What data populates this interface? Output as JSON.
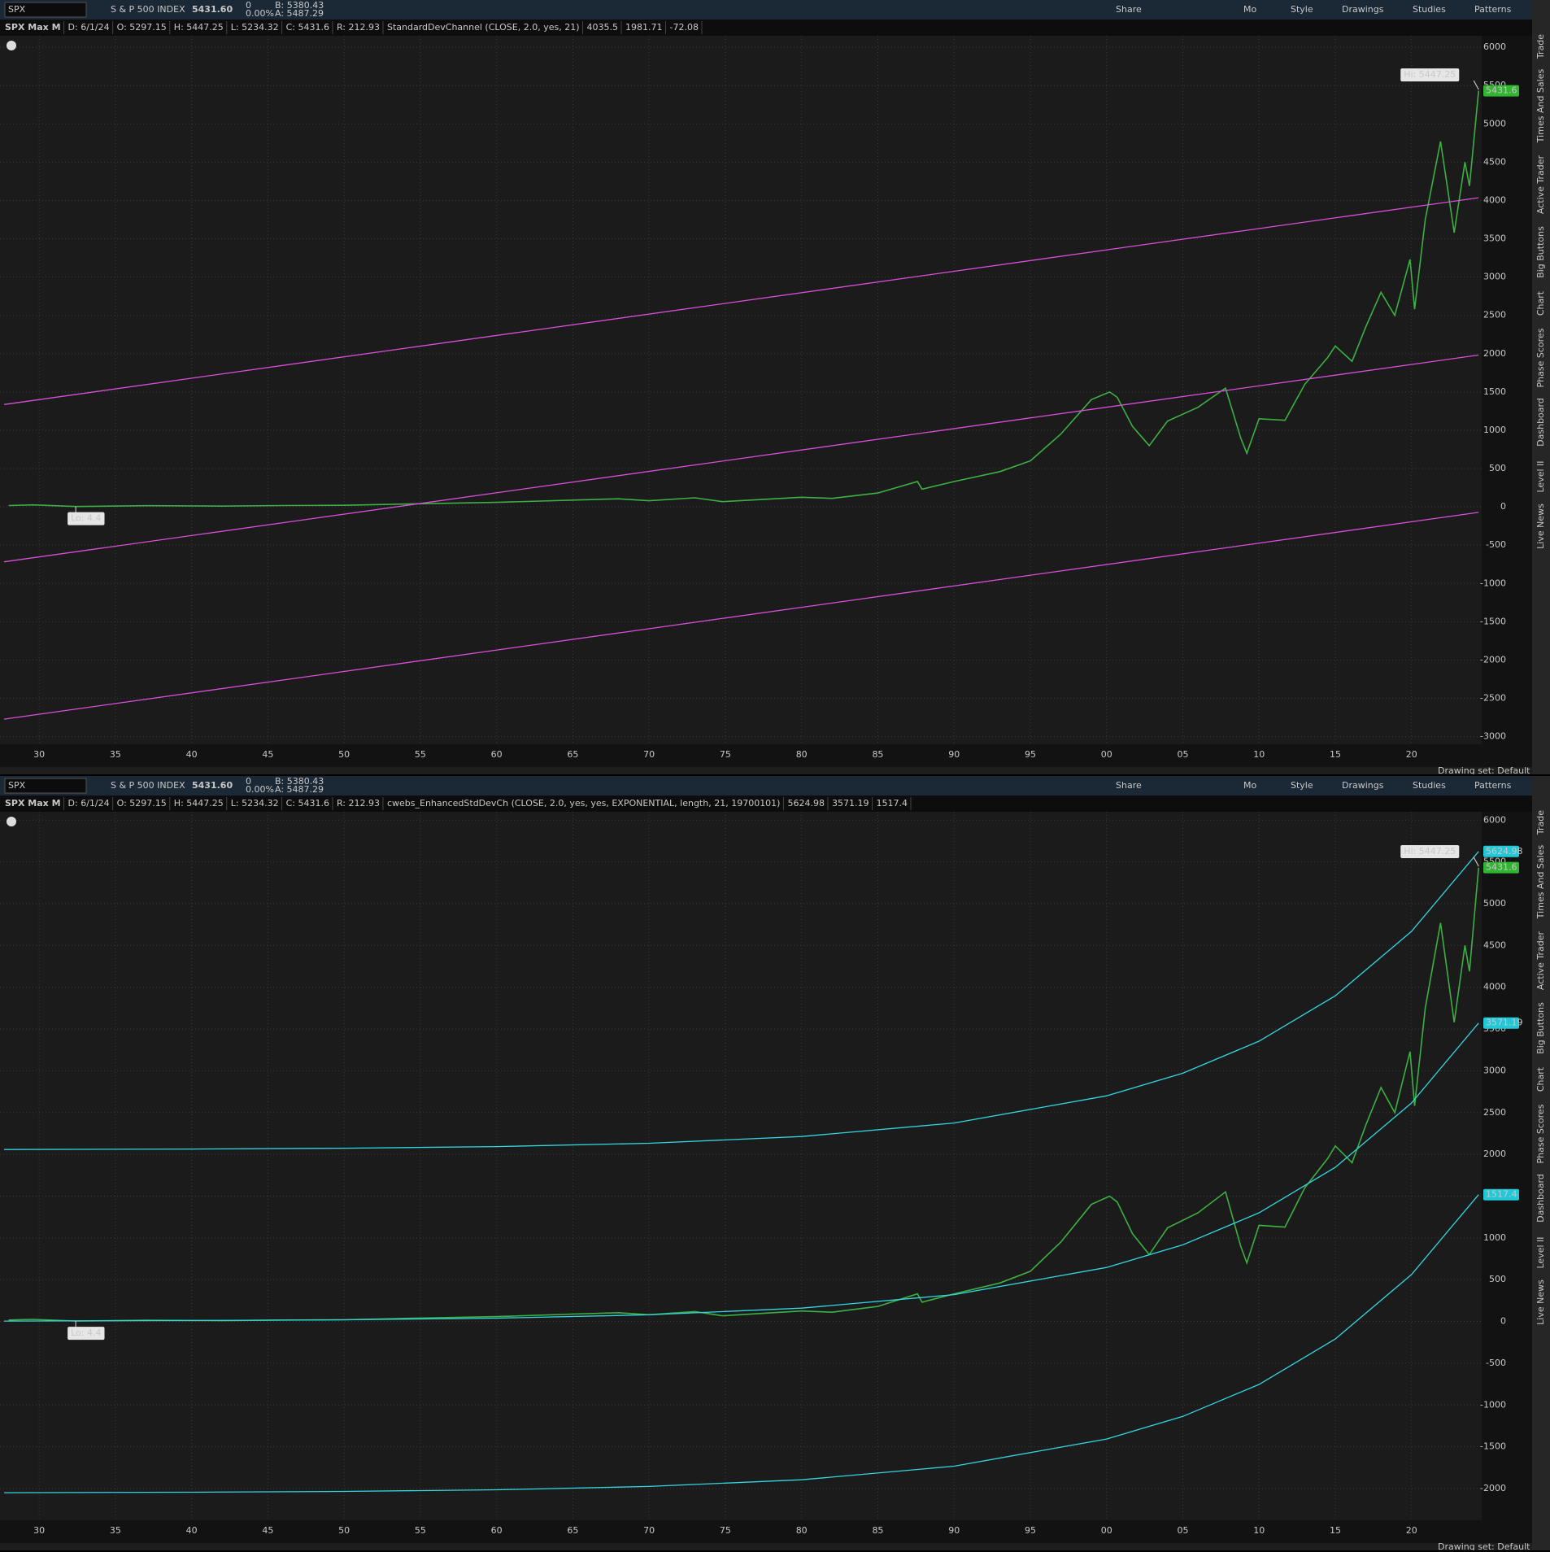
{
  "toolbar": {
    "symbol": "SPX",
    "description": "S & P 500 INDEX",
    "last": "5431.60",
    "change": "0",
    "change_pct": "0.00%",
    "bid": "B: 5380.43",
    "ask": "A: 5487.29",
    "buttons": [
      "Share",
      "Mo",
      "Style",
      "Drawings",
      "Studies",
      "Patterns"
    ]
  },
  "sidebar": [
    "Trade",
    "Times And Sales",
    "Active Trader",
    "Big Buttons",
    "Chart",
    "Phase Scores",
    "Dashboard",
    "Level II",
    "Live News"
  ],
  "footer": "Drawing set: Default",
  "chart_data": [
    {
      "type": "line",
      "title": "SPX Max M",
      "info": [
        "D: 6/1/24",
        "O: 5297.15",
        "H: 5447.25",
        "L: 5234.32",
        "C: 5431.6",
        "R: 212.93"
      ],
      "study": "StandardDevChannel (CLOSE, 2.0, yes, 21)",
      "study_color": "#e060e0",
      "last_value_badges": false,
      "grid": true,
      "xlim": [
        1927.7,
        2024.6
      ],
      "ylim": [
        -3100,
        6150
      ],
      "xticks": [
        {
          "value": 1930,
          "label": "30"
        },
        {
          "value": 1935,
          "label": "35"
        },
        {
          "value": 1940,
          "label": "40"
        },
        {
          "value": 1945,
          "label": "45"
        },
        {
          "value": 1950,
          "label": "50"
        },
        {
          "value": 1955,
          "label": "55"
        },
        {
          "value": 1960,
          "label": "60"
        },
        {
          "value": 1965,
          "label": "65"
        },
        {
          "value": 1970,
          "label": "70"
        },
        {
          "value": 1975,
          "label": "75"
        },
        {
          "value": 1980,
          "label": "80"
        },
        {
          "value": 1985,
          "label": "85"
        },
        {
          "value": 1990,
          "label": "90"
        },
        {
          "value": 1995,
          "label": "95"
        },
        {
          "value": 2000,
          "label": "00"
        },
        {
          "value": 2005,
          "label": "05"
        },
        {
          "value": 2010,
          "label": "10"
        },
        {
          "value": 2015,
          "label": "15"
        },
        {
          "value": 2020,
          "label": "20"
        }
      ],
      "yticks": [
        6000,
        5500,
        5000,
        4500,
        4000,
        3500,
        3000,
        2500,
        2000,
        1500,
        1000,
        500,
        0,
        -500,
        -1000,
        -1500,
        -2000,
        -2500,
        -3000
      ],
      "series": [
        {
          "color": "#3cb043",
          "x": [
            1928,
            1929.6,
            1932.4,
            1937,
            1942,
            1946,
            1950,
            1955,
            1960,
            1965,
            1968,
            1970,
            1973,
            1974.8,
            1980,
            1982,
            1985,
            1987.6,
            1987.9,
            1990,
            1993,
            1995,
            1997,
            1999,
            2000.2,
            2000.7,
            2001.7,
            2002.8,
            2004,
            2006,
            2007.8,
            2008.8,
            2009.2,
            2010,
            2011.7,
            2013,
            2014.5,
            2015,
            2016.1,
            2017,
            2018,
            2018.9,
            2019.9,
            2020.2,
            2020.9,
            2021.9,
            2022.8,
            2023.5,
            2023.8,
            2024.4
          ],
          "values": [
            17,
            25,
            4.4,
            15,
            9,
            17,
            20,
            40,
            58,
            88,
            105,
            80,
            118,
            68,
            125,
            110,
            180,
            330,
            230,
            330,
            460,
            600,
            950,
            1400,
            1500,
            1430,
            1050,
            800,
            1120,
            1300,
            1550,
            900,
            700,
            1150,
            1130,
            1600,
            1950,
            2100,
            1900,
            2350,
            2800,
            2500,
            3230,
            2580,
            3750,
            4770,
            3580,
            4500,
            4190,
            5431.6
          ]
        },
        {
          "color": "#d94fd9",
          "x": [
            1927.7,
            2024.4
          ],
          "values": [
            1336,
            4035.5
          ]
        },
        {
          "color": "#d94fd9",
          "x": [
            1927.7,
            2024.4
          ],
          "values": [
            -718,
            1981.71
          ]
        },
        {
          "color": "#d94fd9",
          "x": [
            1927.7,
            2024.4
          ],
          "values": [
            -2772,
            -72.08
          ]
        }
      ],
      "annotations": [
        {
          "text": "Lo: 4.4",
          "x": 1932.4,
          "y": 4.4
        },
        {
          "text": "Hi: 5447.25",
          "x": 2024.4,
          "y": 5447.25
        }
      ]
    },
    {
      "type": "line",
      "title": "SPX Max M",
      "info": [
        "D: 6/1/24",
        "O: 5297.15",
        "H: 5447.25",
        "L: 5234.32",
        "C: 5431.6",
        "R: 212.93"
      ],
      "study": "cwebs_EnhancedStdDevCh (CLOSE, 2.0, yes, yes, EXPONENTIAL, length, 21, 19700101)",
      "study_color": "#33d6e0",
      "last_value_badges": true,
      "grid": true,
      "xlim": [
        1927.7,
        2024.6
      ],
      "ylim": [
        -2380,
        6100
      ],
      "xticks": [
        {
          "value": 1930,
          "label": "30"
        },
        {
          "value": 1935,
          "label": "35"
        },
        {
          "value": 1940,
          "label": "40"
        },
        {
          "value": 1945,
          "label": "45"
        },
        {
          "value": 1950,
          "label": "50"
        },
        {
          "value": 1955,
          "label": "55"
        },
        {
          "value": 1960,
          "label": "60"
        },
        {
          "value": 1965,
          "label": "65"
        },
        {
          "value": 1970,
          "label": "70"
        },
        {
          "value": 1975,
          "label": "75"
        },
        {
          "value": 1980,
          "label": "80"
        },
        {
          "value": 1985,
          "label": "85"
        },
        {
          "value": 1990,
          "label": "90"
        },
        {
          "value": 1995,
          "label": "95"
        },
        {
          "value": 2000,
          "label": "00"
        },
        {
          "value": 2005,
          "label": "05"
        },
        {
          "value": 2010,
          "label": "10"
        },
        {
          "value": 2015,
          "label": "15"
        },
        {
          "value": 2020,
          "label": "20"
        }
      ],
      "yticks": [
        6000,
        5500,
        5000,
        4500,
        4000,
        3500,
        3000,
        2500,
        2000,
        1500,
        1000,
        500,
        0,
        -500,
        -1000,
        -1500,
        -2000
      ],
      "series": [
        {
          "color": "#3cb043",
          "x": [
            1928,
            1929.6,
            1932.4,
            1937,
            1942,
            1946,
            1950,
            1955,
            1960,
            1965,
            1968,
            1970,
            1973,
            1974.8,
            1980,
            1982,
            1985,
            1987.6,
            1987.9,
            1990,
            1993,
            1995,
            1997,
            1999,
            2000.2,
            2000.7,
            2001.7,
            2002.8,
            2004,
            2006,
            2007.8,
            2008.8,
            2009.2,
            2010,
            2011.7,
            2013,
            2014.5,
            2015,
            2016.1,
            2017,
            2018,
            2018.9,
            2019.9,
            2020.2,
            2020.9,
            2021.9,
            2022.8,
            2023.5,
            2023.8,
            2024.4
          ],
          "values": [
            17,
            25,
            4.4,
            15,
            9,
            17,
            20,
            40,
            58,
            88,
            105,
            80,
            118,
            68,
            125,
            110,
            180,
            330,
            230,
            330,
            460,
            600,
            950,
            1400,
            1500,
            1430,
            1050,
            800,
            1120,
            1300,
            1550,
            900,
            700,
            1150,
            1130,
            1600,
            1950,
            2100,
            1900,
            2350,
            2800,
            2500,
            3230,
            2580,
            3750,
            4770,
            3580,
            4500,
            4190,
            5431.6
          ]
        },
        {
          "color": "#33d6e0",
          "x": [
            1927.7,
            1940,
            1950,
            1960,
            1970,
            1980,
            1990,
            2000,
            2005,
            2010,
            2015,
            2020,
            2024.4
          ],
          "values": [
            2058,
            2063.5,
            2073.3,
            2093,
            2133,
            2213,
            2375,
            2700,
            2971,
            3354,
            3898,
            4669,
            5624.98
          ]
        },
        {
          "color": "#33d6e0",
          "x": [
            1927.7,
            1940,
            1950,
            1960,
            1970,
            1980,
            1990,
            2000,
            2005,
            2010,
            2015,
            2020,
            2024.4
          ],
          "values": [
            4.2,
            9.7,
            19.5,
            39.1,
            79,
            159,
            321,
            646,
            917,
            1300,
            1844,
            2615,
            3571.19
          ]
        },
        {
          "color": "#33d6e0",
          "x": [
            1927.7,
            1940,
            1950,
            1960,
            1970,
            1980,
            1990,
            2000,
            2005,
            2010,
            2015,
            2020,
            2024.4
          ],
          "values": [
            -2049.6,
            -2044.1,
            -2034.3,
            -2014.7,
            -1974.8,
            -1894.8,
            -1732.8,
            -1407.8,
            -1136.8,
            -753.8,
            -209.8,
            561.2,
            1517.4
          ]
        }
      ],
      "annotations": [
        {
          "text": "Lo: 4.4",
          "x": 1932.4,
          "y": 4.4
        },
        {
          "text": "Hi: 5447.25",
          "x": 2024.4,
          "y": 5447.25
        }
      ]
    }
  ]
}
